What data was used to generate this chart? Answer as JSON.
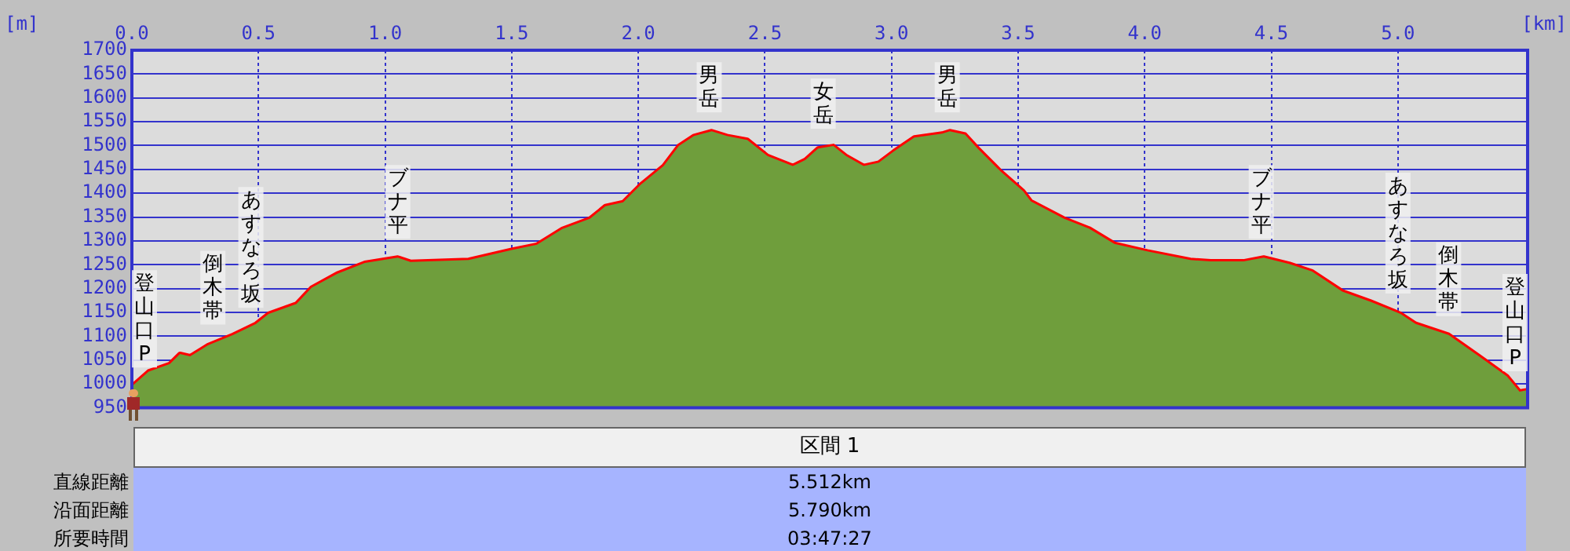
{
  "chart_data": {
    "type": "area",
    "xlabel": "[km]",
    "ylabel": "[m]",
    "x": [
      0,
      0.066,
      0.15,
      0.19,
      0.23,
      0.3,
      0.4,
      0.49,
      0.54,
      0.65,
      0.71,
      0.81,
      0.92,
      1.05,
      1.1,
      1.33,
      1.5,
      1.6,
      1.7,
      1.81,
      1.87,
      1.94,
      2.01,
      2.1,
      2.16,
      2.22,
      2.29,
      2.35,
      2.43,
      2.51,
      2.61,
      2.66,
      2.71,
      2.77,
      2.82,
      2.89,
      2.95,
      3.01,
      3.09,
      3.2,
      3.23,
      3.29,
      3.34,
      3.43,
      3.52,
      3.55,
      3.68,
      3.78,
      3.88,
      4.01,
      4.18,
      4.26,
      4.39,
      4.47,
      4.57,
      4.66,
      4.78,
      4.89,
      5.01,
      5.07,
      5.2,
      5.32,
      5.43,
      5.48,
      5.512
    ],
    "series": [
      {
        "color": "#6f9e3c",
        "values": [
          995,
          1026,
          1042,
          1063,
          1058,
          1081,
          1103,
          1126,
          1147,
          1168,
          1202,
          1231,
          1254,
          1265,
          1256,
          1260,
          1281,
          1292,
          1325,
          1347,
          1373,
          1381,
          1418,
          1457,
          1499,
          1520,
          1530,
          1520,
          1512,
          1478,
          1457,
          1470,
          1494,
          1499,
          1478,
          1457,
          1464,
          1488,
          1517,
          1525,
          1530,
          1523,
          1494,
          1446,
          1404,
          1383,
          1347,
          1326,
          1294,
          1278,
          1260,
          1257,
          1257,
          1265,
          1252,
          1236,
          1194,
          1173,
          1147,
          1126,
          1103,
          1058,
          1016,
          984,
          987
        ]
      },
      {
        "type": "line",
        "color": "#ff0000",
        "values": [
          995,
          1026,
          1042,
          1063,
          1058,
          1081,
          1103,
          1126,
          1147,
          1168,
          1202,
          1231,
          1254,
          1265,
          1256,
          1260,
          1281,
          1292,
          1325,
          1347,
          1373,
          1381,
          1418,
          1457,
          1499,
          1520,
          1530,
          1520,
          1512,
          1478,
          1457,
          1470,
          1494,
          1499,
          1478,
          1457,
          1464,
          1488,
          1517,
          1525,
          1530,
          1523,
          1494,
          1446,
          1404,
          1383,
          1347,
          1326,
          1294,
          1278,
          1260,
          1257,
          1257,
          1265,
          1252,
          1236,
          1194,
          1173,
          1147,
          1126,
          1103,
          1058,
          1016,
          984,
          987
        ]
      }
    ],
    "xlim": [
      0,
      5.512
    ],
    "ylim": [
      950,
      1700
    ],
    "xticks": [
      {
        "value": 0,
        "label": "0.0"
      },
      0.5,
      {
        "value": 1,
        "label": "1.0"
      },
      1.5,
      {
        "value": 2,
        "label": "2.0"
      },
      2.5,
      {
        "value": 3,
        "label": "3.0"
      },
      3.5,
      {
        "value": 4,
        "label": "4.0"
      },
      4.5,
      {
        "value": 5,
        "label": "5.0"
      }
    ],
    "yticks": [
      950,
      1000,
      1050,
      1100,
      1150,
      1200,
      1250,
      1300,
      1350,
      1400,
      1450,
      1500,
      1550,
      1600,
      1650,
      1700
    ],
    "grid": true,
    "legend": false,
    "marker": "none",
    "line_style": "solid",
    "annotations": [
      {
        "text": "登山口P",
        "x": 0,
        "y": 995
      },
      {
        "text": "倒木帯",
        "x": 0.32,
        "y": 1085
      },
      {
        "text": "あすなろ坂",
        "x": 0.47,
        "y": 1120
      },
      {
        "text": "ブナ平",
        "x": 1.05,
        "y": 1265
      },
      {
        "text": "男岳",
        "x": 2.28,
        "y": 1530
      },
      {
        "text": "女岳",
        "x": 2.73,
        "y": 1496
      },
      {
        "text": "男岳",
        "x": 3.22,
        "y": 1530
      },
      {
        "text": "ブナ平",
        "x": 4.46,
        "y": 1265
      },
      {
        "text": "あすなろ坂",
        "x": 5.0,
        "y": 1150
      },
      {
        "text": "倒木帯",
        "x": 5.2,
        "y": 1103
      },
      {
        "text": "登山口P",
        "x": 5.512,
        "y": 987
      },
      "区間 1",
      "直線距離",
      "5.512km",
      "沿面距離",
      "5.790km",
      "所要時間",
      "03:47:27"
    ]
  }
}
